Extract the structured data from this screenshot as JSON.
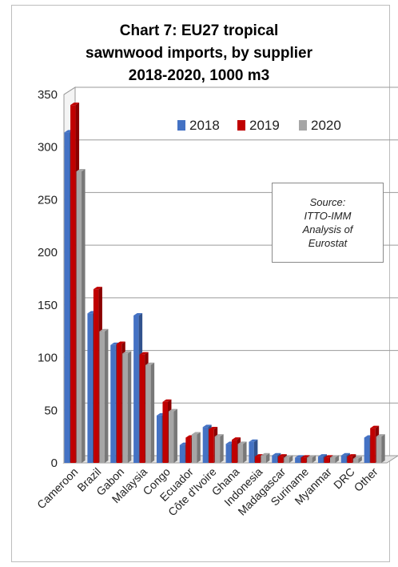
{
  "chart_data": {
    "type": "bar",
    "title_lines": [
      "Chart 7: EU27 tropical",
      "sawnwood imports, by supplier",
      "2018-2020, 1000 m3"
    ],
    "categories": [
      "Cameroon",
      "Brazil",
      "Gabon",
      "Malaysia",
      "Congo",
      "Ecuador",
      "Côte d'Ivoire",
      "Ghana",
      "Indonesia",
      "Madagascar",
      "Suriname",
      "Myanmar",
      "DRC",
      "Other"
    ],
    "series": [
      {
        "name": "2018",
        "color": "#4472c4",
        "values": [
          314,
          142,
          112,
          140,
          45,
          17,
          34,
          18,
          20,
          7,
          5,
          6,
          7,
          24
        ]
      },
      {
        "name": "2019",
        "color": "#c00000",
        "values": [
          340,
          165,
          113,
          103,
          58,
          24,
          32,
          22,
          6,
          6,
          5,
          5,
          6,
          33
        ]
      },
      {
        "name": "2020",
        "color": "#a6a6a6",
        "values": [
          277,
          125,
          104,
          93,
          49,
          27,
          25,
          18,
          7,
          5,
          5,
          5,
          4,
          25
        ]
      }
    ],
    "ylim": [
      0,
      350
    ],
    "yticks": [
      0,
      50,
      100,
      150,
      200,
      250,
      300,
      350
    ],
    "grid": true,
    "legend_position": "top-right",
    "annotation": {
      "lines": [
        "Source:",
        "ITTO-IMM",
        "Analysis of",
        "Eurostat"
      ]
    }
  }
}
